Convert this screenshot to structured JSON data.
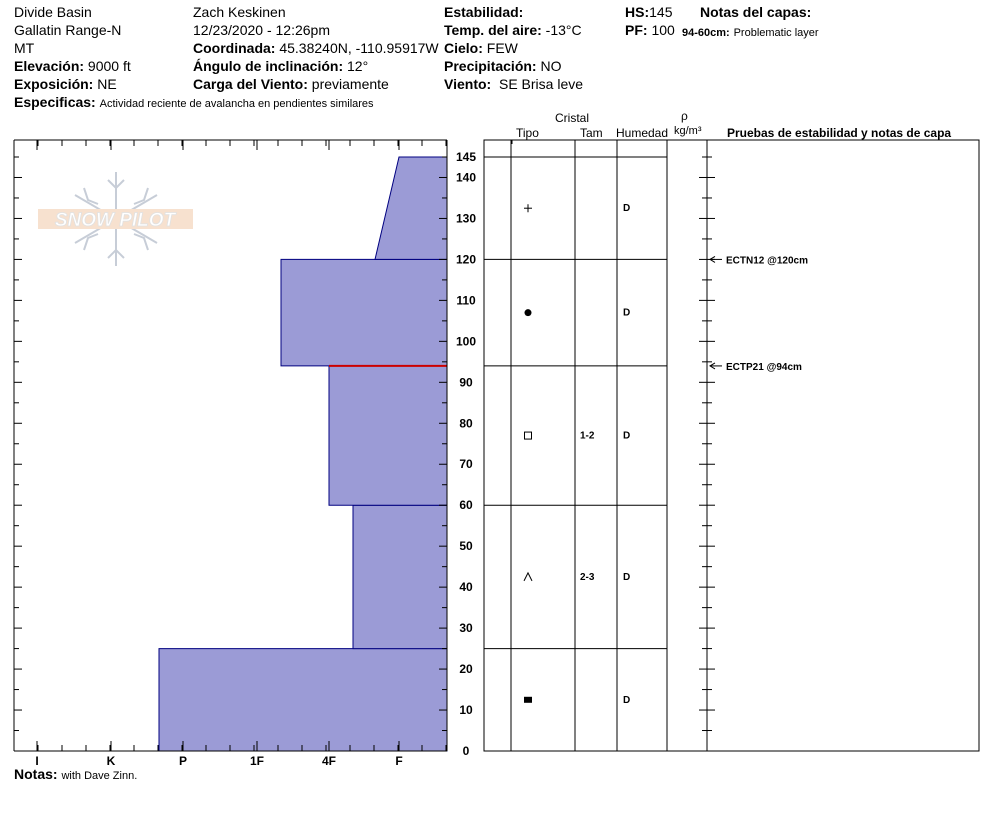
{
  "header": {
    "location": "Divide Basin",
    "range": "Gallatin Range-N",
    "state": "MT",
    "elevation_label": "Elevación:",
    "elevation_value": "9000 ft",
    "aspect_label": "Exposición:",
    "aspect_value": "NE",
    "specifics_label": "Especificas:",
    "specifics_value": "Actividad reciente de avalancha en pendientes similares",
    "observer": "Zach Keskinen",
    "datetime": "12/23/2020 - 12:26pm",
    "coord_label": "Coordinada:",
    "coord_value": "45.38240N, -110.95917W",
    "slope_label": "Ángulo de inclinación:",
    "slope_value": "12°",
    "wind_load_label": "Carga del Viento:",
    "wind_load_value": "previamente",
    "stability_label": "Estabilidad:",
    "air_temp_label": "Temp. del aire:",
    "air_temp_value": "-13°C",
    "sky_label": "Cielo:",
    "sky_value": "FEW",
    "precip_label": "Precipitación:",
    "precip_value": "NO",
    "wind_label": "Viento:",
    "wind_value": "SE  Brisa leve",
    "hs_label": "HS:",
    "hs_value": "145",
    "pf_label": "PF:",
    "pf_value": "100",
    "layer_notes_label": "Notas del capas:",
    "layer_note_range": "94-60cm:",
    "layer_note_text": "Problematic layer"
  },
  "columns": {
    "cristal": "Cristal",
    "tipo": "Tipo",
    "tam": "Tam",
    "humedad": "Humedad",
    "rho": "ρ",
    "density_unit": "kg/m³",
    "tests": "Pruebas de estabilidad y notas de capa"
  },
  "notes": {
    "label": "Notas:",
    "value": "with Dave Zinn."
  },
  "logo_text": "SNOW PILOT",
  "chart_data": {
    "type": "bar",
    "title": "",
    "xlabel": "",
    "ylabel": "",
    "hardness_ticks": [
      "I",
      "K",
      "P",
      "1F",
      "4F",
      "F"
    ],
    "depth_ticks": [
      0,
      10,
      20,
      30,
      40,
      50,
      60,
      70,
      80,
      90,
      100,
      110,
      120,
      130,
      140,
      145
    ],
    "ylim": [
      0,
      145
    ],
    "layers": [
      {
        "bottom": 0,
        "top": 25,
        "hardness_bottom": "P-",
        "hardness_top": "P-",
        "grain": "rounds-solid",
        "size": "",
        "wetness": "D"
      },
      {
        "bottom": 25,
        "top": 60,
        "hardness_bottom": "4F+",
        "hardness_top": "4F+",
        "grain": "depth-hoar",
        "size": "2-3",
        "wetness": "D"
      },
      {
        "bottom": 60,
        "top": 94,
        "hardness_bottom": "4F",
        "hardness_top": "4F",
        "grain": "faceted",
        "size": "1-2",
        "wetness": "D"
      },
      {
        "bottom": 94,
        "top": 120,
        "hardness_bottom": "1F+",
        "hardness_top": "1F+",
        "grain": "graupel",
        "size": "",
        "wetness": "D"
      },
      {
        "bottom": 120,
        "top": 145,
        "hardness_bottom": "F-",
        "hardness_top": "F",
        "grain": "precip-particles",
        "size": "",
        "wetness": "D"
      }
    ],
    "problem_layer_depth": 94,
    "stability_tests": [
      {
        "depth": 120,
        "label": "ECTN12 @120cm"
      },
      {
        "depth": 94,
        "label": "ECTP21 @94cm"
      }
    ],
    "colors": {
      "fill": "#9b9bd6",
      "stroke": "#000080",
      "problem_line": "#cc0000"
    }
  }
}
